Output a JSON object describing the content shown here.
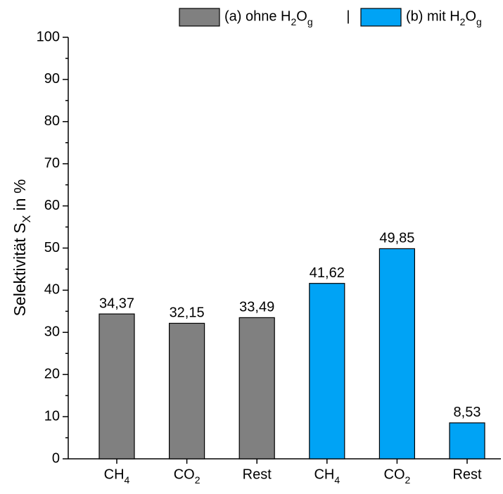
{
  "chart_data": {
    "type": "bar",
    "ylabel": "Selektivität SX in %",
    "categories": [
      "CH4",
      "CO2",
      "Rest",
      "CH4",
      "CO2",
      "Rest"
    ],
    "series": [
      {
        "name": "(a) ohne H2Og",
        "color": "#808080",
        "values": [
          34.37,
          32.15,
          33.49,
          null,
          null,
          null
        ],
        "value_labels": [
          "34,37",
          "32,15",
          "33,49",
          null,
          null,
          null
        ]
      },
      {
        "name": "(b) mit H2Og",
        "color": "#00a3f5",
        "values": [
          null,
          null,
          null,
          41.62,
          49.85,
          8.53
        ],
        "value_labels": [
          null,
          null,
          null,
          "41,62",
          "49,85",
          "8,53"
        ]
      }
    ],
    "legend_separator": "|",
    "ylim": [
      0,
      100
    ],
    "yticks": [
      0,
      10,
      20,
      30,
      40,
      50,
      60,
      70,
      80,
      90,
      100
    ],
    "legend": "top-right"
  }
}
